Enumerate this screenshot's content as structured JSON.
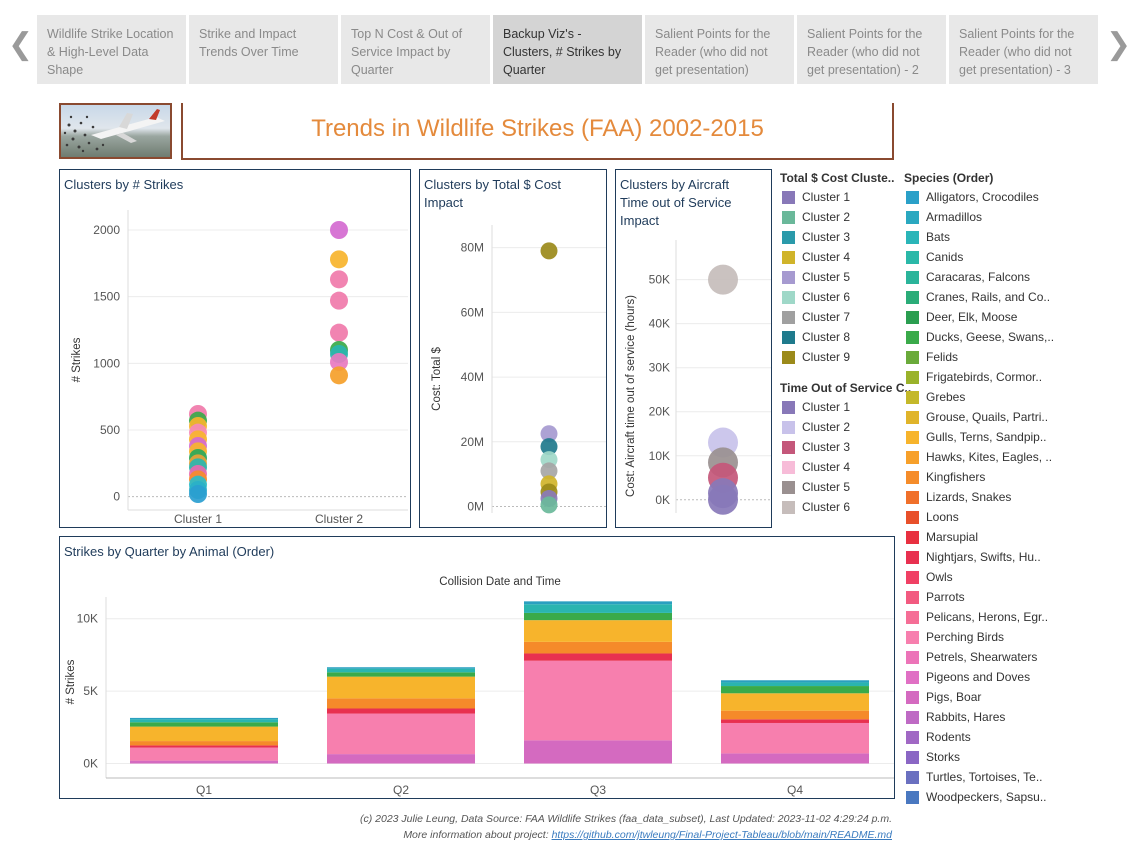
{
  "nav": {
    "tabs": [
      {
        "label": "Wildlife Strike Location & High-Level Data Shape"
      },
      {
        "label": "Strike and Impact Trends Over Time"
      },
      {
        "label": "Top N Cost & Out of Service Impact by Quarter"
      },
      {
        "label": "Backup Viz's - Clusters, # Strikes by Quarter"
      },
      {
        "label": "Salient Points for the Reader (who did not get presentation)"
      },
      {
        "label": "Salient Points for the Reader (who did not get presentation) - 2"
      },
      {
        "label": "Salient Points for the Reader (who did not get presentation) - 3"
      }
    ],
    "prev_icon": "chevron-left-icon",
    "next_icon": "chevron-right-icon",
    "prev_glyph": "❮",
    "next_glyph": "❯"
  },
  "header": {
    "title": "Trends in Wildlife Strikes (FAA) 2002-2015"
  },
  "chart_data": [
    {
      "type": "scatter",
      "title": "Clusters by # Strikes",
      "ylabel": "# Strikes",
      "categories": [
        "Cluster 1",
        "Cluster 2"
      ],
      "ylim": [
        -100,
        2150
      ],
      "yticks": [
        0,
        500,
        1000,
        1500,
        2000
      ],
      "points": [
        {
          "x": "Cluster 1",
          "y": 620,
          "color": "#f07aaa"
        },
        {
          "x": "Cluster 1",
          "y": 570,
          "color": "#3aaa4a"
        },
        {
          "x": "Cluster 1",
          "y": 530,
          "color": "#f7b42c"
        },
        {
          "x": "Cluster 1",
          "y": 480,
          "color": "#f58ab8"
        },
        {
          "x": "Cluster 1",
          "y": 430,
          "color": "#f7b42c"
        },
        {
          "x": "Cluster 1",
          "y": 380,
          "color": "#d46ad0"
        },
        {
          "x": "Cluster 1",
          "y": 340,
          "color": "#f7b42c"
        },
        {
          "x": "Cluster 1",
          "y": 290,
          "color": "#2aa85a"
        },
        {
          "x": "Cluster 1",
          "y": 250,
          "color": "#e8a23a"
        },
        {
          "x": "Cluster 1",
          "y": 220,
          "color": "#2ab5b0"
        },
        {
          "x": "Cluster 1",
          "y": 170,
          "color": "#e86ab0"
        },
        {
          "x": "Cluster 1",
          "y": 130,
          "color": "#f58c2a"
        },
        {
          "x": "Cluster 1",
          "y": 90,
          "color": "#2abcc8"
        },
        {
          "x": "Cluster 1",
          "y": 50,
          "color": "#2ab0c8"
        },
        {
          "x": "Cluster 1",
          "y": 20,
          "color": "#2a9ed0"
        },
        {
          "x": "Cluster 2",
          "y": 2000,
          "color": "#d46ad0"
        },
        {
          "x": "Cluster 2",
          "y": 1780,
          "color": "#f7b42c"
        },
        {
          "x": "Cluster 2",
          "y": 1630,
          "color": "#f07aaa"
        },
        {
          "x": "Cluster 2",
          "y": 1470,
          "color": "#f07aaa"
        },
        {
          "x": "Cluster 2",
          "y": 1230,
          "color": "#f07aaa"
        },
        {
          "x": "Cluster 2",
          "y": 1100,
          "color": "#3aaa4a"
        },
        {
          "x": "Cluster 2",
          "y": 1070,
          "color": "#2ab5b0"
        },
        {
          "x": "Cluster 2",
          "y": 1010,
          "color": "#e87ac0"
        },
        {
          "x": "Cluster 2",
          "y": 910,
          "color": "#f5a02a"
        }
      ]
    },
    {
      "type": "scatter",
      "title": "Clusters by Total $ Cost Impact",
      "ylabel": "Cost: Total $",
      "ylim": [
        -2,
        87
      ],
      "yticks": [
        0,
        20,
        40,
        60,
        80
      ],
      "ytick_labels": [
        "0M",
        "20M",
        "40M",
        "60M",
        "80M"
      ],
      "y_unit": "M",
      "points": [
        {
          "y": 79,
          "color": "#9b8a1a"
        },
        {
          "y": 22.5,
          "color": "#a69ad0"
        },
        {
          "y": 18.5,
          "color": "#1f7a8c"
        },
        {
          "y": 14.5,
          "color": "#9fd8c8"
        },
        {
          "y": 11,
          "color": "#a6a6a6"
        },
        {
          "y": 7,
          "color": "#d0b42a"
        },
        {
          "y": 4.5,
          "color": "#9b8a1a"
        },
        {
          "y": 2.5,
          "color": "#8a7ab8"
        },
        {
          "y": 0.5,
          "color": "#6ab89a"
        }
      ]
    },
    {
      "type": "scatter",
      "title": "Clusters by Aircraft Time out of Service Impact",
      "ylabel": "Cost: Aircraft time out of service (hours)",
      "ylim": [
        -3000,
        59000
      ],
      "yticks": [
        0,
        10000,
        20000,
        30000,
        40000,
        50000
      ],
      "ytick_labels": [
        "0K",
        "10K",
        "20K",
        "30K",
        "40K",
        "50K"
      ],
      "points": [
        {
          "y": 50000,
          "color": "#c6bdbb"
        },
        {
          "y": 13000,
          "color": "#c8c2ea"
        },
        {
          "y": 8500,
          "color": "#9a9090"
        },
        {
          "y": 5000,
          "color": "#c4577a"
        },
        {
          "y": 1500,
          "color": "#8878b8"
        },
        {
          "y": 0,
          "color": "#8878b8"
        }
      ]
    },
    {
      "type": "bar",
      "stacked": true,
      "title": "Strikes by Quarter by Animal (Order)",
      "xlabel": "Collision Date and Time",
      "ylabel": "# Strikes",
      "categories": [
        "Q1",
        "Q2",
        "Q3",
        "Q4"
      ],
      "ylim": [
        -1000,
        11500
      ],
      "yticks": [
        0,
        5000,
        10000
      ],
      "ytick_labels": [
        "0K",
        "5K",
        "10K"
      ],
      "series": [
        {
          "color": "#d46ac0",
          "values": [
            200,
            650,
            1600,
            700
          ]
        },
        {
          "color": "#f77fae",
          "values": [
            900,
            2800,
            5500,
            2100
          ]
        },
        {
          "color": "#e83050",
          "values": [
            150,
            350,
            500,
            250
          ]
        },
        {
          "color": "#f58a2a",
          "values": [
            300,
            700,
            800,
            600
          ]
        },
        {
          "color": "#f7b42c",
          "values": [
            1000,
            1500,
            1500,
            1200
          ]
        },
        {
          "color": "#3aaa4a",
          "values": [
            300,
            300,
            500,
            500
          ]
        },
        {
          "color": "#2ab5b0",
          "values": [
            200,
            250,
            600,
            250
          ]
        },
        {
          "color": "#2aa0c0",
          "values": [
            100,
            100,
            200,
            150
          ]
        }
      ]
    }
  ],
  "legends": {
    "cost_clusters": {
      "title": "Total $ Cost Cluste..",
      "items": [
        {
          "label": "Cluster 1",
          "color": "#8878b8"
        },
        {
          "label": "Cluster 2",
          "color": "#6ab89a"
        },
        {
          "label": "Cluster 3",
          "color": "#2a9aaa"
        },
        {
          "label": "Cluster 4",
          "color": "#d0b42a"
        },
        {
          "label": "Cluster 5",
          "color": "#a69ad0"
        },
        {
          "label": "Cluster 6",
          "color": "#9fd8c8"
        },
        {
          "label": "Cluster 7",
          "color": "#a0a0a0"
        },
        {
          "label": "Cluster 8",
          "color": "#1f7a8c"
        },
        {
          "label": "Cluster 9",
          "color": "#9b8a1a"
        }
      ]
    },
    "time_clusters": {
      "title": "Time Out of Service C..",
      "items": [
        {
          "label": "Cluster 1",
          "color": "#8878b8"
        },
        {
          "label": "Cluster 2",
          "color": "#c8c2ea"
        },
        {
          "label": "Cluster 3",
          "color": "#c4577a"
        },
        {
          "label": "Cluster 4",
          "color": "#f7bcd8"
        },
        {
          "label": "Cluster 5",
          "color": "#9a9090"
        },
        {
          "label": "Cluster 6",
          "color": "#c6bdbb"
        }
      ]
    },
    "species": {
      "title": "Species (Order)",
      "items": [
        {
          "label": "Alligators, Crocodiles",
          "color": "#2aa0c8"
        },
        {
          "label": "Armadillos",
          "color": "#2aa8c0"
        },
        {
          "label": "Bats",
          "color": "#2ab5b8"
        },
        {
          "label": "Canids",
          "color": "#2ab8a8"
        },
        {
          "label": "Caracaras, Falcons",
          "color": "#2ab49a"
        },
        {
          "label": "Cranes, Rails, and Co..",
          "color": "#2aac78"
        },
        {
          "label": "Deer, Elk, Moose",
          "color": "#2a9e50"
        },
        {
          "label": "Ducks, Geese, Swans,..",
          "color": "#3aaa4a"
        },
        {
          "label": "Felids",
          "color": "#6aaa3a"
        },
        {
          "label": "Frigatebirds, Cormor..",
          "color": "#9ab22a"
        },
        {
          "label": "Grebes",
          "color": "#c4b82a"
        },
        {
          "label": "Grouse, Quails, Partri..",
          "color": "#e0b42a"
        },
        {
          "label": "Gulls, Terns, Sandpip..",
          "color": "#f7b42c"
        },
        {
          "label": "Hawks, Kites, Eagles, ..",
          "color": "#f7a02a"
        },
        {
          "label": "Kingfishers",
          "color": "#f58c2a"
        },
        {
          "label": "Lizards, Snakes",
          "color": "#f0702a"
        },
        {
          "label": "Loons",
          "color": "#e8502a"
        },
        {
          "label": "Marsupial",
          "color": "#e83040"
        },
        {
          "label": "Nightjars, Swifts, Hu..",
          "color": "#e83050"
        },
        {
          "label": "Owls",
          "color": "#f04064"
        },
        {
          "label": "Parrots",
          "color": "#f25a80"
        },
        {
          "label": "Pelicans, Herons, Egr..",
          "color": "#f56e96"
        },
        {
          "label": "Perching Birds",
          "color": "#f77fae"
        },
        {
          "label": "Petrels, Shearwaters",
          "color": "#ec74b8"
        },
        {
          "label": "Pigeons and Doves",
          "color": "#e070c4"
        },
        {
          "label": "Pigs, Boar",
          "color": "#d46ac0"
        },
        {
          "label": "Rabbits, Hares",
          "color": "#be6ac4"
        },
        {
          "label": "Rodents",
          "color": "#a068c4"
        },
        {
          "label": "Storks",
          "color": "#8a66c4"
        },
        {
          "label": "Turtles, Tortoises, Te..",
          "color": "#6a70c0"
        },
        {
          "label": "Woodpeckers, Sapsu..",
          "color": "#4a78c0"
        }
      ]
    }
  },
  "footer": {
    "line1": "(c) 2023 Julie Leung, Data Source: FAA Wildlife Strikes (faa_data_subset), Last Updated: 2023-11-02 4:29:24 p.m.",
    "line2_prefix": "More information about project: ",
    "link": "https://github.com/jtwleung/Final-Project-Tableau/blob/main/README.md"
  }
}
